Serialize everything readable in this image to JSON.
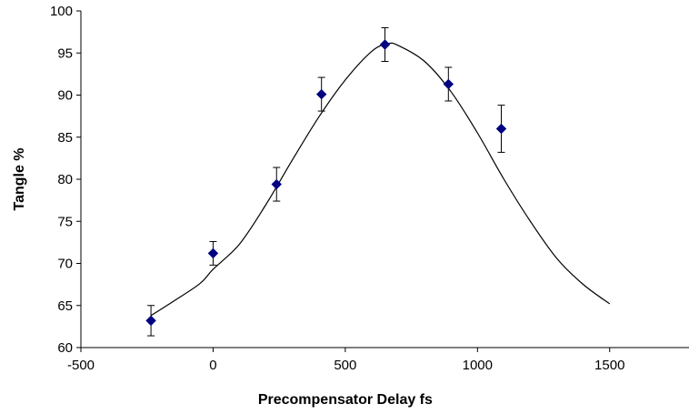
{
  "chart_data": {
    "type": "scatter",
    "title": "",
    "xlabel": "Precompensator Delay fs",
    "ylabel": "Tangle %",
    "xlim": [
      -500,
      1800
    ],
    "ylim": [
      60,
      100
    ],
    "x_ticks": [
      -500,
      0,
      500,
      1000,
      1500
    ],
    "y_ticks": [
      60,
      65,
      70,
      75,
      80,
      85,
      90,
      95,
      100
    ],
    "grid": false,
    "legend": "none",
    "marker_color": "#000080",
    "series": [
      {
        "marker": "diamond",
        "points": [
          {
            "x": -235,
            "y": 63.2,
            "err": 1.8
          },
          {
            "x": 0,
            "y": 71.2,
            "err": 1.4
          },
          {
            "x": 240,
            "y": 79.4,
            "err": 2.0
          },
          {
            "x": 410,
            "y": 90.1,
            "err": 2.0
          },
          {
            "x": 650,
            "y": 96.0,
            "err": 2.0
          },
          {
            "x": 890,
            "y": 91.3,
            "err": 2.0
          },
          {
            "x": 1090,
            "y": 86.0,
            "err": 2.8
          }
        ]
      }
    ],
    "fit_curve": [
      {
        "x": -235,
        "y": 63.8
      },
      {
        "x": -150,
        "y": 65.5
      },
      {
        "x": -50,
        "y": 67.6
      },
      {
        "x": 0,
        "y": 69.3
      },
      {
        "x": 100,
        "y": 72.3
      },
      {
        "x": 200,
        "y": 77.0
      },
      {
        "x": 300,
        "y": 82.3
      },
      {
        "x": 400,
        "y": 87.4
      },
      {
        "x": 500,
        "y": 91.8
      },
      {
        "x": 600,
        "y": 95.2
      },
      {
        "x": 660,
        "y": 96.1
      },
      {
        "x": 700,
        "y": 95.9
      },
      {
        "x": 800,
        "y": 94.0
      },
      {
        "x": 900,
        "y": 90.4
      },
      {
        "x": 1000,
        "y": 85.5
      },
      {
        "x": 1100,
        "y": 80.0
      },
      {
        "x": 1200,
        "y": 75.0
      },
      {
        "x": 1300,
        "y": 70.6
      },
      {
        "x": 1400,
        "y": 67.5
      },
      {
        "x": 1500,
        "y": 65.2
      }
    ]
  }
}
